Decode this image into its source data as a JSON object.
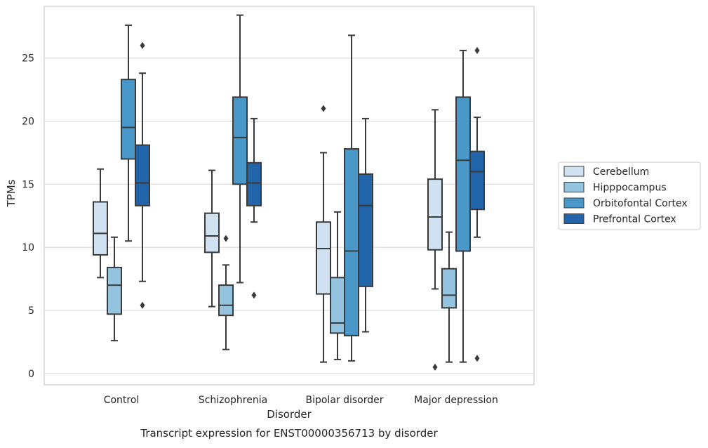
{
  "chart_data": {
    "type": "box",
    "caption": "Transcript expression for ENST00000356713 by disorder",
    "xlabel": "Disorder",
    "ylabel": "TPMs",
    "ylim": [
      -0.9,
      29.1
    ],
    "yticks": [
      0,
      5,
      10,
      15,
      20,
      25
    ],
    "grid": true,
    "legend_position": "right",
    "categories": [
      "Control",
      "Schizophrenia",
      "Bipolar disorder",
      "Major depression"
    ],
    "series": [
      {
        "name": "Cerebellum",
        "color": "#d0e1f2",
        "boxes": [
          {
            "whisker_low": 7.6,
            "q1": 9.4,
            "median": 11.1,
            "q3": 13.6,
            "whisker_high": 16.2,
            "outliers": []
          },
          {
            "whisker_low": 5.3,
            "q1": 9.6,
            "median": 10.9,
            "q3": 12.7,
            "whisker_high": 16.1,
            "outliers": []
          },
          {
            "whisker_low": 0.9,
            "q1": 6.3,
            "median": 9.9,
            "q3": 12.0,
            "whisker_high": 17.5,
            "outliers": [
              21.0
            ]
          },
          {
            "whisker_low": 6.7,
            "q1": 9.8,
            "median": 12.4,
            "q3": 15.4,
            "whisker_high": 20.9,
            "outliers": [
              0.5
            ]
          }
        ]
      },
      {
        "name": "Hipppocampus",
        "color": "#94c4df",
        "boxes": [
          {
            "whisker_low": 2.6,
            "q1": 4.7,
            "median": 7.0,
            "q3": 8.4,
            "whisker_high": 10.8,
            "outliers": []
          },
          {
            "whisker_low": 1.9,
            "q1": 4.6,
            "median": 5.4,
            "q3": 7.0,
            "whisker_high": 8.6,
            "outliers": [
              10.7
            ]
          },
          {
            "whisker_low": 1.1,
            "q1": 3.2,
            "median": 4.0,
            "q3": 7.6,
            "whisker_high": 12.8,
            "outliers": []
          },
          {
            "whisker_low": 0.9,
            "q1": 5.2,
            "median": 6.2,
            "q3": 8.3,
            "whisker_high": 11.2,
            "outliers": []
          }
        ]
      },
      {
        "name": "Orbitofontal Cortex",
        "color": "#4a98c9",
        "boxes": [
          {
            "whisker_low": 10.5,
            "q1": 17.0,
            "median": 19.5,
            "q3": 23.3,
            "whisker_high": 27.6,
            "outliers": []
          },
          {
            "whisker_low": 7.2,
            "q1": 15.0,
            "median": 18.7,
            "q3": 21.9,
            "whisker_high": 28.4,
            "outliers": []
          },
          {
            "whisker_low": 1.0,
            "q1": 3.0,
            "median": 9.7,
            "q3": 17.8,
            "whisker_high": 26.8,
            "outliers": []
          },
          {
            "whisker_low": 0.9,
            "q1": 9.7,
            "median": 16.9,
            "q3": 21.9,
            "whisker_high": 25.6,
            "outliers": []
          }
        ]
      },
      {
        "name": "Prefrontal Cortex",
        "color": "#2264a9",
        "boxes": [
          {
            "whisker_low": 7.3,
            "q1": 13.3,
            "median": 15.1,
            "q3": 18.1,
            "whisker_high": 23.8,
            "outliers": [
              26.0,
              5.4
            ]
          },
          {
            "whisker_low": 12.0,
            "q1": 13.3,
            "median": 15.1,
            "q3": 16.7,
            "whisker_high": 20.2,
            "outliers": [
              6.2
            ]
          },
          {
            "whisker_low": 3.3,
            "q1": 6.9,
            "median": 13.3,
            "q3": 15.8,
            "whisker_high": 20.2,
            "outliers": []
          },
          {
            "whisker_low": 10.8,
            "q1": 13.0,
            "median": 16.0,
            "q3": 17.6,
            "whisker_high": 20.3,
            "outliers": [
              25.6,
              1.2
            ]
          }
        ]
      }
    ]
  }
}
